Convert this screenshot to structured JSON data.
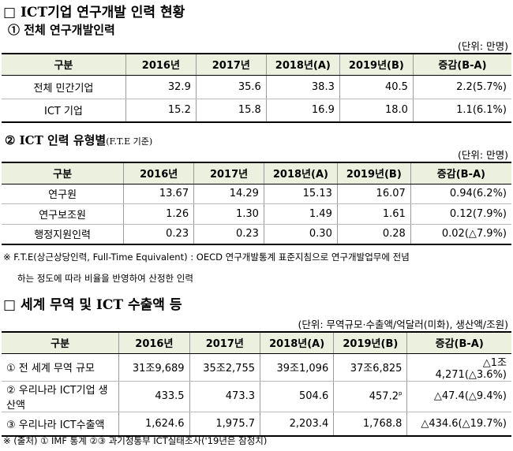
{
  "section1": {
    "title": "□ ICT기업 연구개발 인력 현황",
    "sub1": {
      "title": "① 전체 연구개발인력",
      "unit": "(단위: 만명)",
      "table": {
        "header": [
          "구분",
          "2016년",
          "2017년",
          "2018년(A)",
          "2019년(B)",
          "증감(B-A)"
        ],
        "rows": [
          [
            "전체 민간기업",
            "32.9",
            "35.6",
            "38.3",
            "40.5",
            "2.2(5.7%)"
          ],
          [
            "ICT 기업",
            "15.2",
            "15.8",
            "16.9",
            "18.0",
            "1.1(6.1%)"
          ]
        ]
      }
    },
    "sub2": {
      "title": "② ICT 인력 유형별",
      "title_note": "(F.T.E 기준)",
      "unit": "(단위: 만명)",
      "table": {
        "header": [
          "구분",
          "2016년",
          "2017년",
          "2018년(A)",
          "2019년(B)",
          "증감(B-A)"
        ],
        "rows": [
          [
            "연구원",
            "13.67",
            "14.29",
            "15.13",
            "16.07",
            "0.94(6.2%)"
          ],
          [
            "연구보조원",
            "1.26",
            "1.30",
            "1.49",
            "1.61",
            "0.12(7.9%)"
          ],
          [
            "행정지원인력",
            "0.23",
            "0.23",
            "0.30",
            "0.28",
            "0.02(△7.9%)"
          ]
        ]
      },
      "note": [
        "※ F.T.E(상근상당인력, Full-Time Equivalent) : OECD 연구개발통계 표준지침으로 연구개발업무에 전념",
        "하는 정도에 따라 비율을 반영하여 산정한 인력"
      ]
    }
  },
  "section2": {
    "title": "□ 세계 무역 및 ICT 수출액 등",
    "unit": "(단위: 무역규모·수출액/억달러(미화), 생산액/조원)",
    "table": {
      "header": [
        "구분",
        "2016년",
        "2017년",
        "2018년(A)",
        "2019년(B)",
        "증감(B-A)"
      ],
      "rows": [
        [
          "① 전 세계 무역 규모",
          "31조9,689",
          "35조2,755",
          "39조1,096",
          "37조6,825",
          "△1조4,271(△3.6%)"
        ],
        [
          "② 우리나라 ICT기업 생산액",
          "433.5",
          "473.3",
          "504.6",
          {
            "text": "457.2",
            "sup": "p"
          },
          "△47.4(△9.4%)"
        ],
        [
          "③ 우리나라 ICT수출액",
          "1,624.6",
          "1,975.7",
          "2,203.4",
          "1,768.8",
          "△434.6(△19.7%)"
        ]
      ]
    },
    "footnote": "※ (출처) ① IMF 통계 ②③ 과기정통부 ICT실태조사('19년은 잠정치)"
  }
}
